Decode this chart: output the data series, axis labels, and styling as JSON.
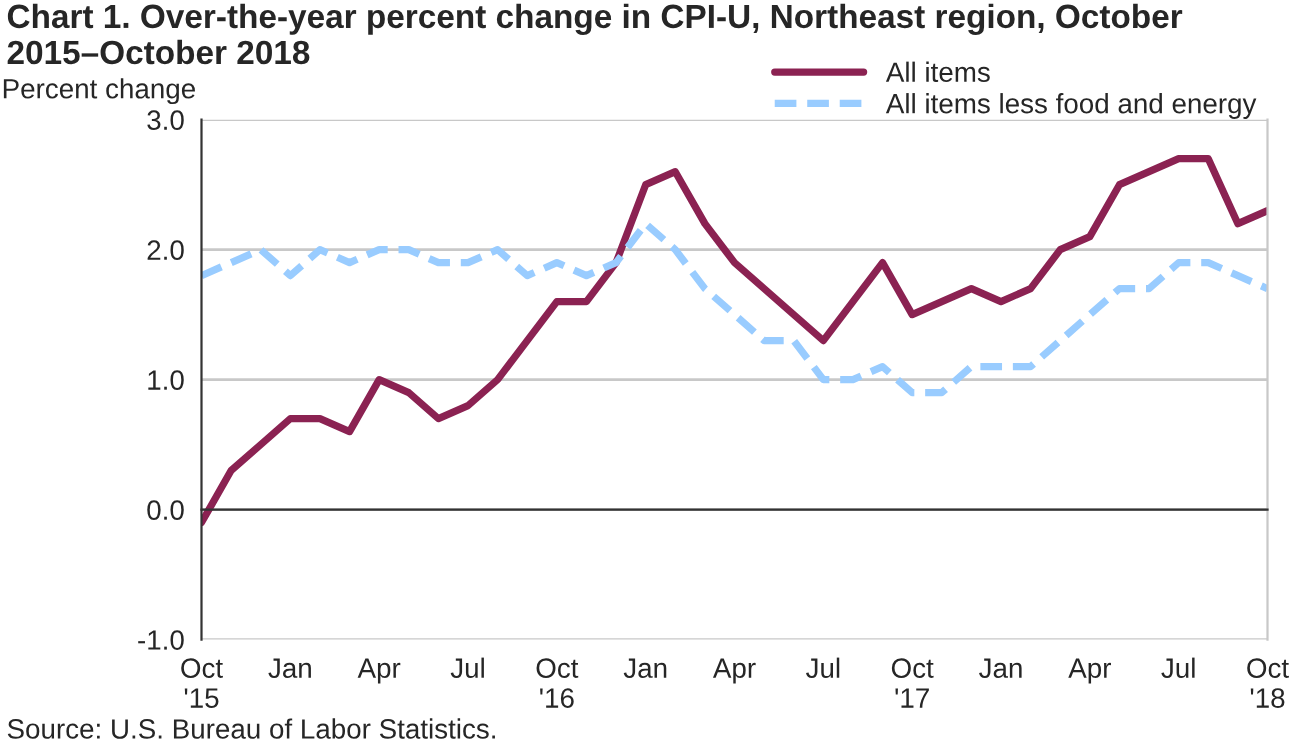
{
  "chart_data": {
    "type": "line",
    "title": "Chart 1. Over-the-year percent change in CPI-U, Northeast region, October 2015–October 2018",
    "ylabel": "Percent change",
    "categories": [
      "Oct\n'15",
      null,
      null,
      "Jan",
      null,
      null,
      "Apr",
      null,
      null,
      "Jul",
      null,
      null,
      "Oct\n'16",
      null,
      null,
      "Jan",
      null,
      null,
      "Apr",
      null,
      null,
      "Jul",
      null,
      null,
      "Oct\n'17",
      null,
      null,
      "Jan",
      null,
      null,
      "Apr",
      null,
      null,
      "Jul",
      null,
      null,
      "Oct\n'18"
    ],
    "series": [
      {
        "name": "All items",
        "color": "#8b2252",
        "line_style": "solid",
        "values": [
          -0.1,
          0.3,
          0.5,
          0.7,
          0.7,
          0.6,
          1.0,
          0.9,
          0.7,
          0.8,
          1.0,
          1.3,
          1.6,
          1.6,
          1.9,
          2.5,
          2.6,
          2.2,
          1.9,
          1.7,
          1.5,
          1.3,
          1.6,
          1.9,
          1.5,
          1.6,
          1.7,
          1.6,
          1.7,
          2.0,
          2.1,
          2.5,
          2.6,
          2.7,
          2.7,
          2.2,
          2.3
        ]
      },
      {
        "name": "All items less food and energy",
        "color": "#99ccff",
        "line_style": "dashed",
        "values": [
          1.8,
          1.9,
          2.0,
          1.8,
          2.0,
          1.9,
          2.0,
          2.0,
          1.9,
          1.9,
          2.0,
          1.8,
          1.9,
          1.8,
          1.9,
          2.2,
          2.0,
          1.7,
          1.5,
          1.3,
          1.3,
          1.0,
          1.0,
          1.1,
          0.9,
          0.9,
          1.1,
          1.1,
          1.1,
          1.3,
          1.5,
          1.7,
          1.7,
          1.9,
          1.9,
          1.8,
          1.7
        ]
      }
    ],
    "ylim": [
      -1.0,
      3.0
    ],
    "yticks": [
      {
        "value": -1.0,
        "label": "-1.0"
      },
      {
        "value": 0.0,
        "label": "0.0"
      },
      {
        "value": 1.0,
        "label": "1.0"
      },
      {
        "value": 2.0,
        "label": "2.0"
      },
      {
        "value": 3.0,
        "label": "3.0"
      }
    ],
    "grid": "y",
    "legend": "top right",
    "marker": "none",
    "annotations": [
      "Source: U.S. Bureau of Labor Statistics."
    ]
  }
}
